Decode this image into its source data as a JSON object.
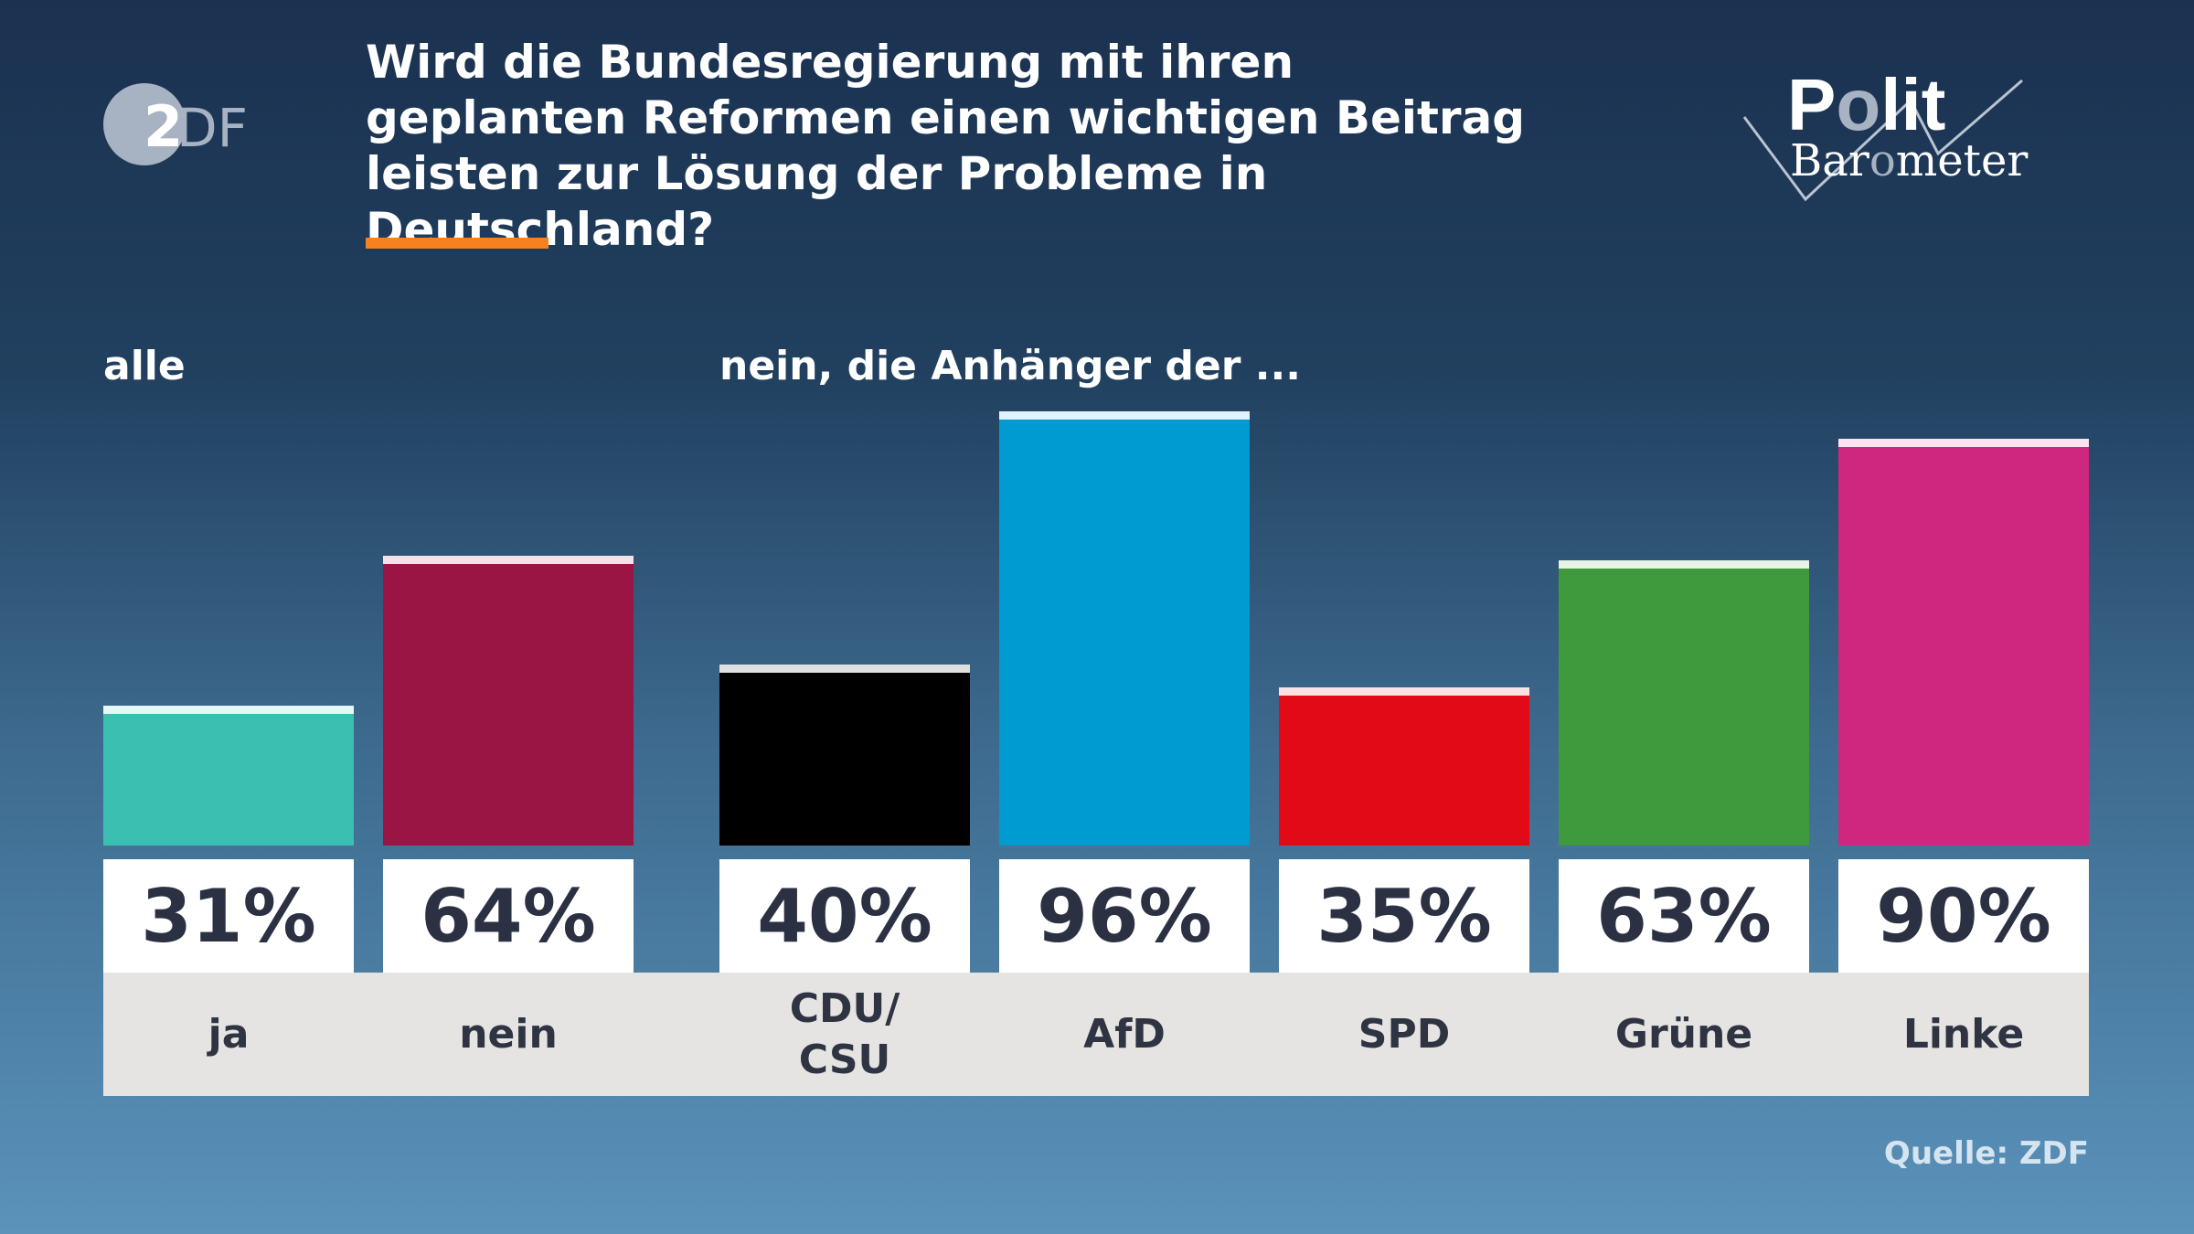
{
  "logo_zdf": "ZDF",
  "logo_politbarometer": "Polit Barometer",
  "chart_data": {
    "type": "bar",
    "title": "Wird die Bundesregierung mit ihren geplanten Reformen einen wichtigen Beitrag leisten zur Lösung der Probleme in Deutschland?",
    "groups": [
      {
        "label": "alle"
      },
      {
        "label": "nein, die Anhänger der ..."
      }
    ],
    "categories": [
      "ja",
      "nein",
      "CDU/\nCSU",
      "AfD",
      "SPD",
      "Grüne",
      "Linke"
    ],
    "values": [
      31,
      64,
      40,
      96,
      35,
      63,
      90
    ],
    "value_labels": [
      "31%",
      "64%",
      "40%",
      "96%",
      "35%",
      "63%",
      "90%"
    ],
    "group_of_category": [
      0,
      0,
      1,
      1,
      1,
      1,
      1
    ],
    "colors": [
      "#3bbfb1",
      "#9a1444",
      "#000000",
      "#009bd0",
      "#e20a17",
      "#3e9a3c",
      "#cf2680"
    ],
    "ylim": [
      0,
      100
    ],
    "grid": false,
    "source": "Quelle: ZDF"
  },
  "accent_color": "#f5821f"
}
